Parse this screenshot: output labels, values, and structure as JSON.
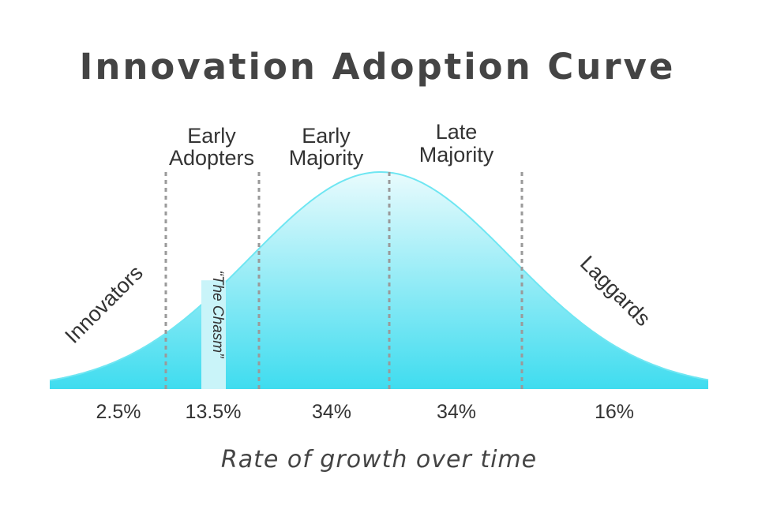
{
  "title": "Innovation Adoption Curve",
  "x_axis_label": "Rate of growth over time",
  "chasm_label": "“The Chasm”",
  "segments": [
    {
      "name": "Innovators",
      "percent": "2.5%"
    },
    {
      "name": "Early Adopters",
      "line1": "Early",
      "line2": "Adopters",
      "percent": "13.5%"
    },
    {
      "name": "Early Majority",
      "line1": "Early",
      "line2": "Majority",
      "percent": "34%"
    },
    {
      "name": "Late Majority",
      "line1": "Late",
      "line2": "Majority",
      "percent": "34%"
    },
    {
      "name": "Laggards",
      "percent": "16%"
    }
  ],
  "colors": {
    "curve_stroke": "#6fe6f2",
    "fill_top": "#e9fbfd",
    "fill_bottom": "#3fdcef",
    "chasm_fill": "#c9f4f9",
    "divider": "#9a9a9a",
    "text": "#333333"
  }
}
